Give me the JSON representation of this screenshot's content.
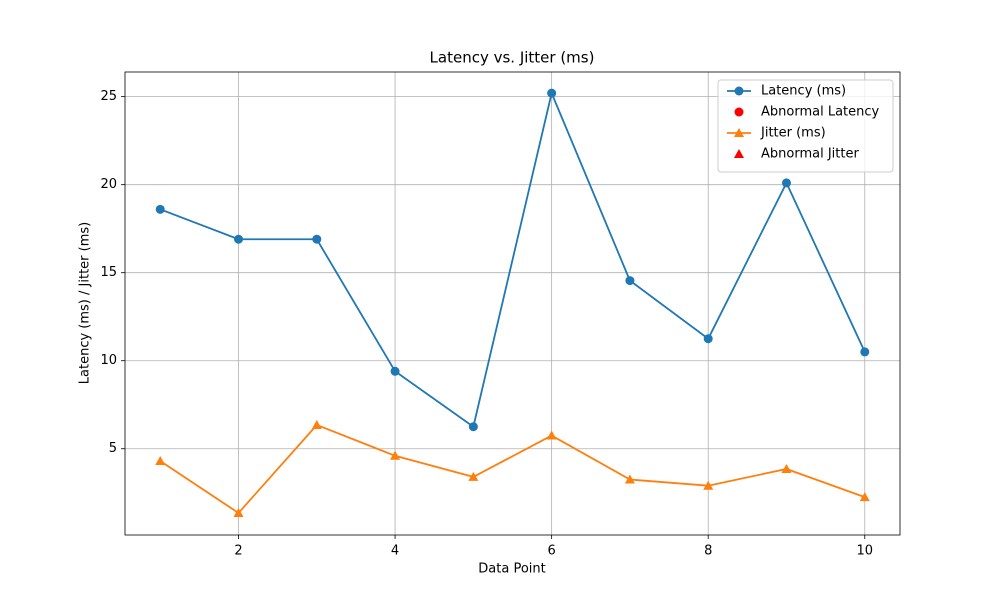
{
  "chart_data": {
    "type": "line",
    "title": "Latency vs. Jitter (ms)",
    "x_label": "Data Point",
    "y_label": "Latency (ms) / Jitter (ms)",
    "x": [
      1,
      2,
      3,
      4,
      5,
      6,
      7,
      8,
      9,
      10
    ],
    "series": [
      {
        "name": "Latency (ms)",
        "color": "#1f77b4",
        "marker": "circle",
        "style": "line",
        "values": [
          18.6,
          16.9,
          16.9,
          9.4,
          6.25,
          25.2,
          14.55,
          11.25,
          20.1,
          10.5
        ]
      },
      {
        "name": "Abnormal Latency",
        "color": "#ff0000",
        "marker": "circle",
        "style": "scatter",
        "values": [
          null,
          null,
          null,
          null,
          null,
          null,
          null,
          null,
          null,
          null
        ]
      },
      {
        "name": "Jitter (ms)",
        "color": "#ff7f0e",
        "marker": "triangle",
        "style": "line",
        "values": [
          4.3,
          1.35,
          6.35,
          4.6,
          3.4,
          5.75,
          3.25,
          2.9,
          3.85,
          2.25
        ]
      },
      {
        "name": "Abnormal Jitter",
        "color": "#ff0000",
        "marker": "triangle",
        "style": "scatter",
        "values": [
          null,
          null,
          null,
          null,
          null,
          null,
          null,
          null,
          null,
          null
        ]
      }
    ],
    "xlim": [
      0.55,
      10.45
    ],
    "xticks": [
      2,
      4,
      6,
      8,
      10
    ],
    "ylim": [
      0.1,
      26.4
    ],
    "yticks": [
      5,
      10,
      15,
      20,
      25
    ],
    "grid": true,
    "legend": "upper right"
  }
}
